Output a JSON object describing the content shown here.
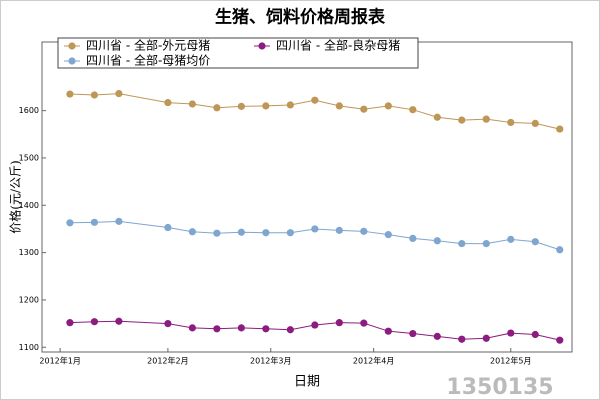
{
  "chart_data": {
    "type": "line",
    "title": "生猪、饲料价格周报表",
    "x_label": "日期",
    "y_label": "价格(元/公斤)",
    "watermark": "1350135",
    "x": [
      0,
      1,
      2,
      4,
      5,
      6,
      7,
      8,
      9,
      10,
      11,
      12,
      13,
      14,
      15,
      16,
      17,
      18,
      19,
      20
    ],
    "xlim": [
      -1.14,
      20.5
    ],
    "xticks": [
      {
        "value": -0.4,
        "label": "2012年1月"
      },
      {
        "value": 4,
        "label": "2012年2月"
      },
      {
        "value": 8.2,
        "label": "2012年3月"
      },
      {
        "value": 12.4,
        "label": "2012年4月"
      },
      {
        "value": 18,
        "label": "2012年5月"
      }
    ],
    "ylim": [
      1090,
      1745
    ],
    "yticks": [
      1100,
      1200,
      1300,
      1400,
      1500,
      1600
    ],
    "series": [
      {
        "name": "四川省 - 全部-外元母猪",
        "color": "#be9656",
        "values": [
          1635,
          1633,
          1636,
          1617,
          1614,
          1606,
          1609,
          1610,
          1612,
          1622,
          1610,
          1603,
          1610,
          1602,
          1586,
          1580,
          1582,
          1575,
          1573,
          1561
        ]
      },
      {
        "name": "四川省 - 全部-良杂母猪",
        "color": "#8c1c80",
        "values": [
          1152,
          1154,
          1155,
          1150,
          1141,
          1139,
          1141,
          1139,
          1137,
          1147,
          1152,
          1151,
          1134,
          1129,
          1123,
          1117,
          1119,
          1130,
          1127,
          1115
        ]
      },
      {
        "name": "四川省 - 全部-母猪均价",
        "color": "#7ea6cf",
        "values": [
          1363,
          1364,
          1366,
          1353,
          1344,
          1341,
          1343,
          1342,
          1342,
          1350,
          1347,
          1345,
          1338,
          1330,
          1325,
          1319,
          1319,
          1328,
          1323,
          1306
        ]
      }
    ]
  }
}
